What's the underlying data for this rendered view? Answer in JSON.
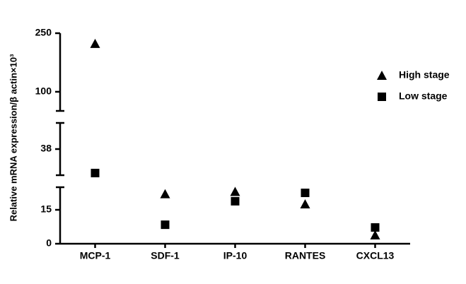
{
  "chart_data": {
    "type": "scatter",
    "y_label": "Relative mRNA expression/β actin×10³",
    "categories": [
      "MCP-1",
      "SDF-1",
      "IP-10",
      "RANTES",
      "CXCL13"
    ],
    "y_segments": [
      {
        "ylim": [
          0,
          25
        ],
        "yticks": [
          0,
          15
        ]
      },
      {
        "ylim": [
          26,
          50
        ],
        "yticks": [
          38
        ]
      },
      {
        "ylim": [
          51,
          250
        ],
        "yticks": [
          100,
          250
        ]
      }
    ],
    "series": [
      {
        "name": "High stage",
        "marker": "triangle",
        "color": "#000000",
        "values": [
          223,
          22,
          23,
          17.5,
          3.8
        ]
      },
      {
        "name": "Low stage",
        "marker": "square",
        "color": "#000000",
        "values": [
          27,
          8.4,
          18.8,
          22.5,
          7.2
        ]
      }
    ],
    "legend": "right"
  }
}
